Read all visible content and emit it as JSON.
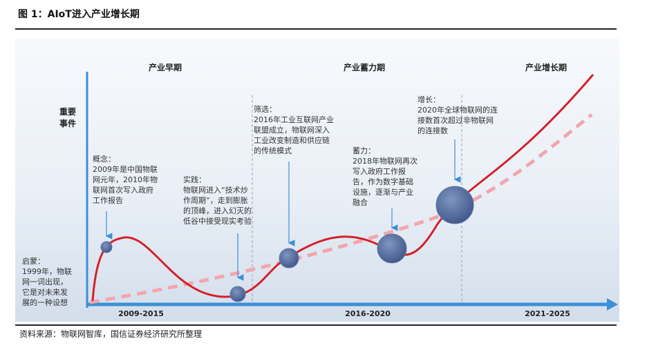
{
  "figure": {
    "title": "图 1：AIoT进入产业增长期",
    "source": "资料来源：物联网智库，国信证券经济研究所整理"
  },
  "diagram": {
    "y_axis_label_line1": "重要",
    "y_axis_label_line2": "事件",
    "phases": [
      {
        "name": "产业早期",
        "period": "2009-2015"
      },
      {
        "name": "产业蓄力期",
        "period": "2016-2020"
      },
      {
        "name": "产业增长期",
        "period": "2021-2025"
      }
    ],
    "events": [
      {
        "title": "启蒙：",
        "lines": [
          "1999年，物联",
          "网一词出现，",
          "它是对未来发",
          "展的一种设想"
        ]
      },
      {
        "title": "概念：",
        "lines": [
          "2009年是中国物联",
          "网元年，2010年物",
          "联网首次写入政府",
          "工作报告"
        ]
      },
      {
        "title": "实践：",
        "lines": [
          "物联网进入“技术炒",
          "作周期”，走到膨胀",
          "的顶峰，进入幻灭的",
          "低谷中接受现实考验"
        ]
      },
      {
        "title": "筛选：",
        "lines": [
          "2016年工业互联网产业",
          "联盟成立，物联网深入",
          "工业改变制造和供应链",
          "的传统模式"
        ]
      },
      {
        "title": "蓄力：",
        "lines": [
          "2018年物联网再次",
          "写入政府工作报",
          "告，作为数字基础",
          "设施，逐渐与产业",
          "融合"
        ]
      },
      {
        "title": "增长：",
        "lines": [
          "2020年全球物联网的连",
          "接数首次超过非物联网",
          "的连接数"
        ]
      }
    ],
    "colors": {
      "background": "#dde6f1",
      "axis": "#3d8fd6",
      "curve": "#d4202a",
      "dashed_trend": "#f2a6ac",
      "bubble": "#4a6598",
      "divider": "#9aa3ad"
    }
  }
}
